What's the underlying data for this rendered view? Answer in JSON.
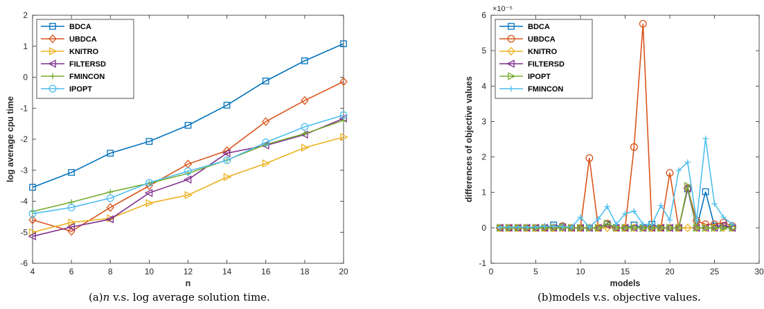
{
  "chart_data": [
    {
      "type": "line",
      "xlabel": "n",
      "ylabel": "log average cpu time",
      "xlim": [
        4,
        20
      ],
      "ylim": [
        -6,
        2
      ],
      "xticks": [
        4,
        6,
        8,
        10,
        12,
        14,
        16,
        18,
        20
      ],
      "yticks": [
        -6,
        -5,
        -4,
        -3,
        -2,
        -1,
        0,
        1,
        2
      ],
      "legend_position": "top-left",
      "x": [
        4,
        6,
        8,
        10,
        12,
        14,
        16,
        18,
        20
      ],
      "series": [
        {
          "name": "BDCA",
          "color": "#0072BD",
          "marker": "square",
          "values": [
            -3.55,
            -3.07,
            -2.45,
            -2.07,
            -1.55,
            -0.9,
            -0.12,
            0.53,
            1.08
          ]
        },
        {
          "name": "UBDCA",
          "color": "#D95319",
          "marker": "diamond",
          "values": [
            -4.6,
            -4.97,
            -4.2,
            -3.5,
            -2.8,
            -2.37,
            -1.43,
            -0.75,
            -0.14
          ]
        },
        {
          "name": "KNITRO",
          "color": "#EDB120",
          "marker": "triangle-right",
          "values": [
            -5.0,
            -4.68,
            -4.55,
            -4.06,
            -3.8,
            -3.22,
            -2.78,
            -2.27,
            -1.93
          ]
        },
        {
          "name": "FILTERSD",
          "color": "#7E2F8E",
          "marker": "triangle-left",
          "values": [
            -5.13,
            -4.83,
            -4.58,
            -3.73,
            -3.3,
            -2.45,
            -2.2,
            -1.85,
            -1.33
          ]
        },
        {
          "name": "FMINCON",
          "color": "#77AC30",
          "marker": "plus",
          "values": [
            -4.33,
            -4.03,
            -3.7,
            -3.42,
            -3.1,
            -2.67,
            -2.17,
            -1.82,
            -1.39
          ]
        },
        {
          "name": "IPOPT",
          "color": "#4DBEEE",
          "marker": "circle",
          "values": [
            -4.4,
            -4.2,
            -3.9,
            -3.4,
            -3.03,
            -2.68,
            -2.1,
            -1.6,
            -1.22
          ]
        }
      ],
      "caption_prefix": "(a)",
      "caption_var": "n",
      "caption_rest": " v.s. log average solution time."
    },
    {
      "type": "line",
      "xlabel": "models",
      "ylabel": "differences of objective values",
      "xlim": [
        0,
        30
      ],
      "ylim": [
        -1,
        6
      ],
      "y_exponent_label": "×10⁻⁵",
      "xticks": [
        0,
        5,
        10,
        15,
        20,
        25,
        30
      ],
      "yticks": [
        -1,
        0,
        1,
        2,
        3,
        4,
        5,
        6
      ],
      "legend_position": "top-left",
      "x": [
        1,
        2,
        3,
        4,
        5,
        6,
        7,
        8,
        9,
        10,
        11,
        12,
        13,
        14,
        15,
        16,
        17,
        18,
        19,
        20,
        21,
        22,
        23,
        24,
        25,
        26,
        27
      ],
      "series": [
        {
          "name": "BDCA",
          "color": "#0072BD",
          "marker": "square",
          "values": [
            0,
            0,
            0,
            0,
            0,
            0,
            0.08,
            0.03,
            0,
            0,
            0,
            0,
            0.1,
            0,
            0,
            0.08,
            0,
            0.1,
            0,
            0,
            0,
            1.1,
            0,
            1.02,
            0.05,
            0.05,
            0
          ]
        },
        {
          "name": "UBDCA",
          "color": "#D95319",
          "marker": "circle",
          "values": [
            0,
            0,
            0,
            0,
            0,
            0,
            0,
            0.05,
            0,
            0,
            1.97,
            0,
            0.12,
            0,
            0,
            2.28,
            5.76,
            0,
            0,
            1.55,
            0,
            1.12,
            0.2,
            0.1,
            0.1,
            0.15,
            0.05
          ]
        },
        {
          "name": "KNITRO",
          "color": "#EDB120",
          "marker": "diamond",
          "values": [
            0,
            0,
            0,
            0,
            0,
            0,
            0,
            0,
            0,
            0,
            0,
            0,
            0,
            0,
            0,
            0,
            0,
            0,
            0,
            0,
            0,
            0,
            0,
            0,
            0,
            0,
            0
          ]
        },
        {
          "name": "FILTERSD",
          "color": "#7E2F8E",
          "marker": "triangle-left",
          "values": [
            0,
            0,
            0,
            0,
            0,
            0,
            0,
            0,
            0,
            0,
            0,
            0,
            0.08,
            0,
            0,
            0,
            0,
            0,
            0,
            0,
            0,
            1.12,
            0,
            0,
            0,
            0.08,
            0
          ]
        },
        {
          "name": "IPOPT",
          "color": "#77AC30",
          "marker": "triangle-right",
          "values": [
            0,
            0,
            0,
            0,
            0,
            0,
            0,
            0,
            0,
            0,
            0,
            0,
            0.12,
            0,
            0,
            0,
            0,
            0,
            0,
            0,
            0,
            1.18,
            0,
            0,
            0,
            0,
            0
          ]
        },
        {
          "name": "FMINCON",
          "color": "#4DBEEE",
          "marker": "plus",
          "values": [
            0.02,
            0.02,
            0.02,
            0.02,
            0.02,
            0.05,
            0.05,
            0.03,
            0.02,
            0.3,
            0.02,
            0.25,
            0.6,
            0.1,
            0.4,
            0.47,
            0.1,
            0.1,
            0.63,
            0.22,
            1.62,
            1.85,
            0.2,
            2.52,
            0.68,
            0.3,
            0.1
          ]
        }
      ],
      "caption_prefix": "(b)",
      "caption_var": "",
      "caption_rest": "models v.s. objective values."
    }
  ]
}
